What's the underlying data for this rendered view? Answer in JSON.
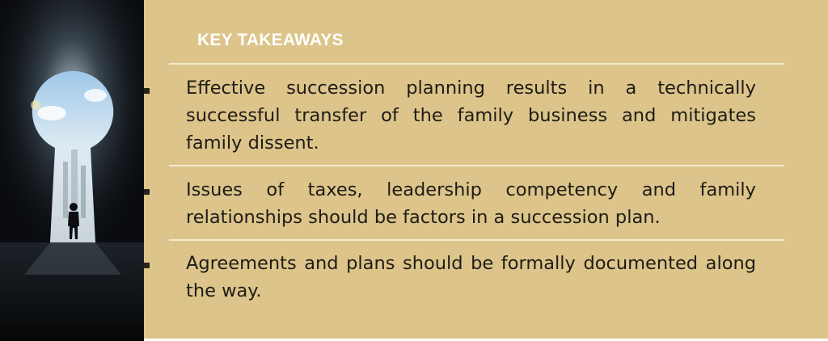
{
  "slide": {
    "heading": "KEY TAKEAWAYS",
    "takeaways": [
      "Effective succession planning results in a technically successful transfer of the family business and mitigates family dissent.",
      "Issues of taxes, leadership competency and family relationships should be factors in a succession plan.",
      "Agreements and plans should be formally documented along the way."
    ]
  },
  "colors": {
    "panel_background": "#dcc48a",
    "heading_text": "#ffffff",
    "divider": "#f4ead2",
    "body_text": "#1f1c17",
    "photo_background": "#0a0c10"
  },
  "image": {
    "icon": "keyhole-door-person-icon"
  }
}
